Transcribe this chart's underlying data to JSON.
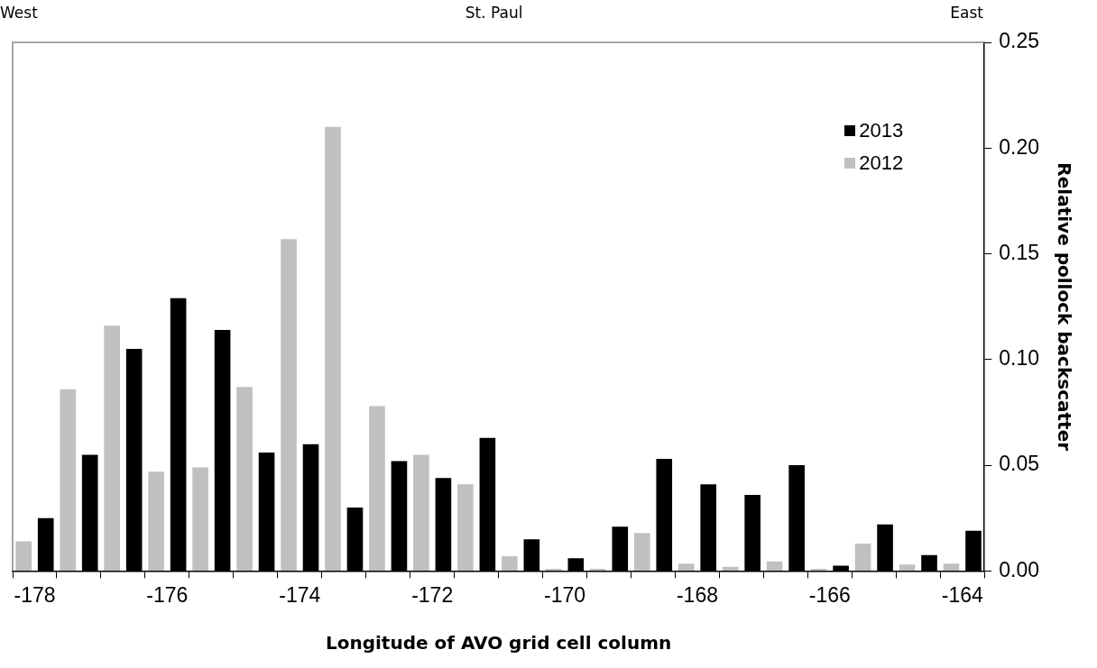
{
  "chart_data": {
    "type": "bar",
    "xlabel": "Longitude of AVO grid cell column",
    "ylabel": "Relative pollock backscatter",
    "annotations": [
      "West",
      "St. Paul",
      "East"
    ],
    "categories": [
      "-178",
      null,
      null,
      "-176",
      null,
      null,
      "-174",
      null,
      null,
      "-172",
      null,
      null,
      "-170",
      null,
      null,
      "-168",
      null,
      null,
      "-166",
      null,
      null,
      "-164"
    ],
    "series": [
      {
        "name": "2012",
        "color": "#c0c0c0",
        "values": [
          0.014,
          0.086,
          0.116,
          0.047,
          0.049,
          0.087,
          0.157,
          0.21,
          0.078,
          0.055,
          0.041,
          0.007,
          0.001,
          0.001,
          0.018,
          0.0035,
          0.002,
          0.0045,
          0.001,
          0.013,
          0.003,
          0.0035
        ]
      },
      {
        "name": "2013",
        "color": "#000000",
        "values": [
          0.025,
          0.055,
          0.105,
          0.129,
          0.114,
          0.056,
          0.06,
          0.03,
          0.052,
          0.044,
          0.063,
          0.015,
          0.006,
          0.021,
          0.053,
          0.041,
          0.036,
          0.05,
          0.0025,
          0.022,
          0.0075,
          0.019
        ]
      }
    ],
    "ylim": [
      0,
      0.25
    ],
    "yticks": [
      {
        "value": 0,
        "label": "0.00"
      },
      {
        "value": 0.05,
        "label": "0.05"
      },
      {
        "value": 0.1,
        "label": "0.10"
      },
      {
        "value": 0.15,
        "label": "0.15"
      },
      {
        "value": 0.2,
        "label": "0.20"
      },
      {
        "value": 0.25,
        "label": "0.25"
      }
    ],
    "grid": false,
    "legend": "top right"
  }
}
